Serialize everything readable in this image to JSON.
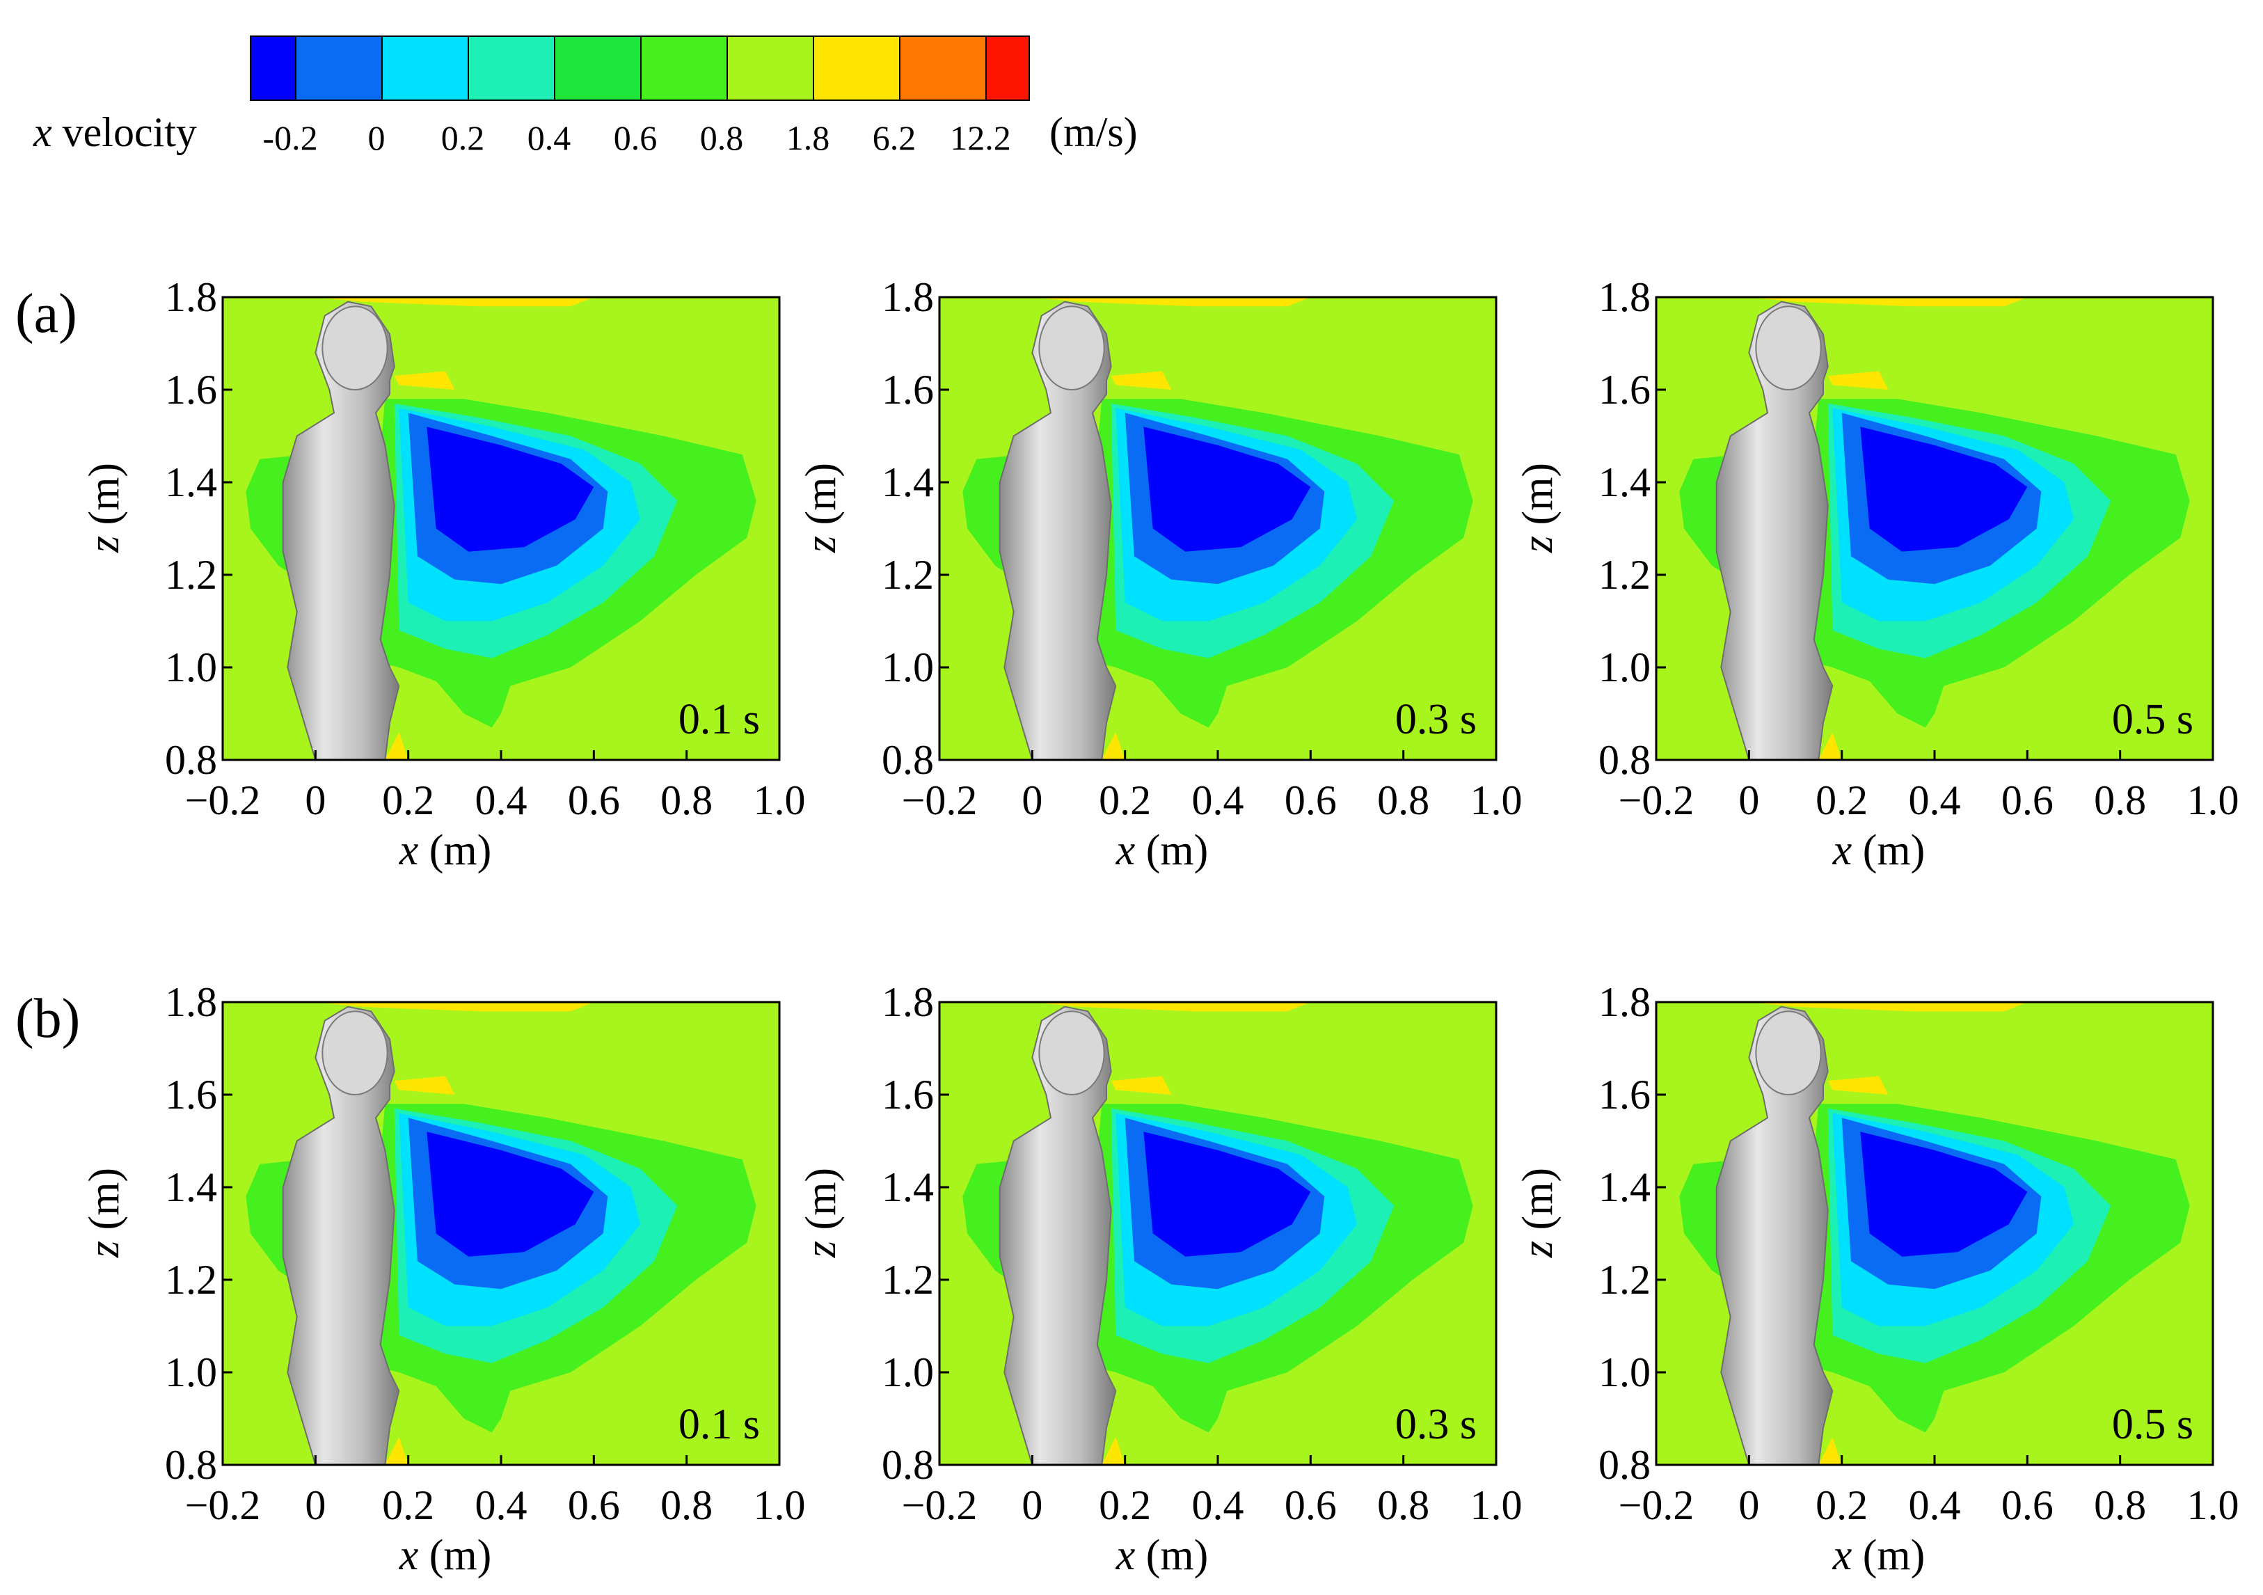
{
  "colorbar": {
    "label_var": "x",
    "label_rest": " velocity",
    "unit": "(m/s)",
    "levels": [
      "-0.2",
      "0",
      "0.2",
      "0.4",
      "0.6",
      "0.8",
      "1.8",
      "6.2",
      "12.2"
    ],
    "colors": [
      "#0000ff",
      "#0a6cf5",
      "#00e0ff",
      "#1cf0b4",
      "#1ee63c",
      "#46f01e",
      "#a8f51e",
      "#ffe600",
      "#ff7800",
      "#ff1400"
    ]
  },
  "rows": [
    {
      "label": "(a)",
      "panels": [
        {
          "time": "0.1 s"
        },
        {
          "time": "0.3 s"
        },
        {
          "time": "0.5 s"
        }
      ]
    },
    {
      "label": "(b)",
      "panels": [
        {
          "time": "0.1 s"
        },
        {
          "time": "0.3 s"
        },
        {
          "time": "0.5 s"
        }
      ]
    }
  ],
  "chart_data": {
    "type": "heatmap",
    "field": "x velocity",
    "unit": "m/s",
    "xlabel_var": "x",
    "xlabel_unit": " (m)",
    "ylabel_var": "z",
    "ylabel_unit": " (m)",
    "xlim": [
      -0.2,
      1.0
    ],
    "ylim": [
      0.8,
      1.8
    ],
    "x_ticks": [
      "−0.2",
      "0",
      "0.2",
      "0.4",
      "0.6",
      "0.8",
      "1.0"
    ],
    "x_tick_values": [
      -0.2,
      0,
      0.2,
      0.4,
      0.6,
      0.8,
      1.0
    ],
    "y_ticks": [
      "0.8",
      "1.0",
      "1.2",
      "1.4",
      "1.6",
      "1.8"
    ],
    "y_tick_values": [
      0.8,
      1.0,
      1.2,
      1.4,
      1.6,
      1.8
    ],
    "background_level": "1.8",
    "contour_colors": {
      "jet": "#ffe600",
      "top_band": "#ffe600",
      "outer": "#46f01e",
      "mid": "#1cf0b4",
      "inner": "#00e0ff",
      "core_outer": "#0a6cf5",
      "core": "#0000ff",
      "body": "#c8c8c8"
    }
  }
}
